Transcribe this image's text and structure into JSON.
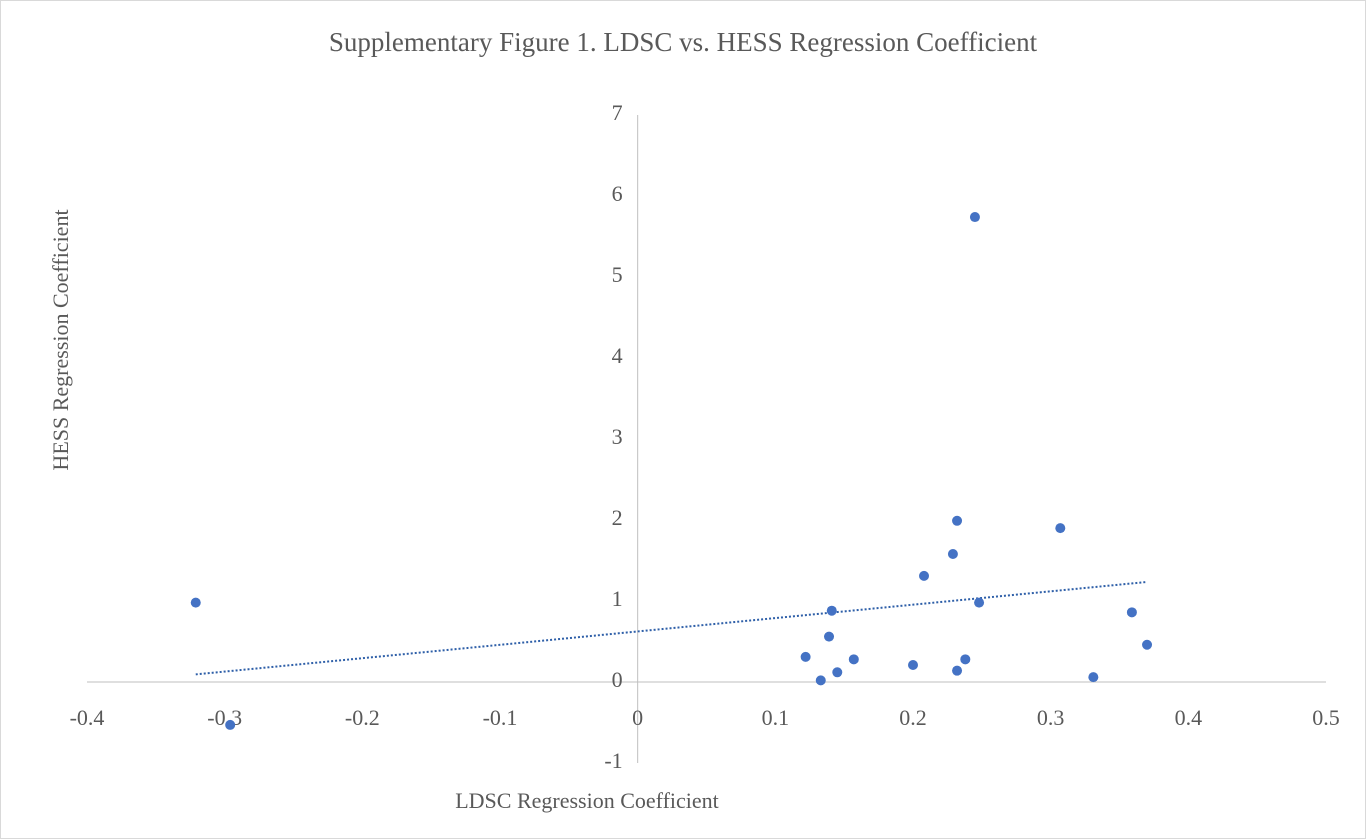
{
  "chart_data": {
    "type": "scatter",
    "title": "Supplementary Figure 1.  LDSC vs. HESS Regression Coefficient",
    "x_label": "LDSC Regression Coefficient",
    "y_label": "HESS Regression Coefficient",
    "series": [
      {
        "name": "HESS Regression Coefficient",
        "color": "#4472c4",
        "x": [
          -0.321,
          -0.296,
          0.122,
          0.133,
          0.139,
          0.141,
          0.145,
          0.157,
          0.2,
          0.208,
          0.229,
          0.232,
          0.232,
          0.238,
          0.245,
          0.248,
          0.307,
          0.331,
          0.359,
          0.37
        ],
        "values": [
          0.98,
          -0.53,
          0.31,
          0.02,
          0.56,
          0.88,
          0.12,
          0.28,
          0.21,
          1.31,
          1.58,
          0.14,
          1.99,
          0.28,
          5.74,
          0.98,
          1.9,
          0.06,
          0.86,
          0.46
        ]
      }
    ],
    "trendline": "linear",
    "trendline_color": "#2e5fa8",
    "xlim": [
      -0.4,
      0.5
    ],
    "xticks": [
      -0.4,
      -0.3,
      -0.2,
      -0.1,
      0,
      0.1,
      0.2,
      0.3,
      0.4,
      0.5
    ],
    "ylim": [
      -1,
      7
    ],
    "yticks": [
      -1,
      0,
      1,
      2,
      3,
      4,
      5,
      6,
      7
    ],
    "grid": false
  }
}
